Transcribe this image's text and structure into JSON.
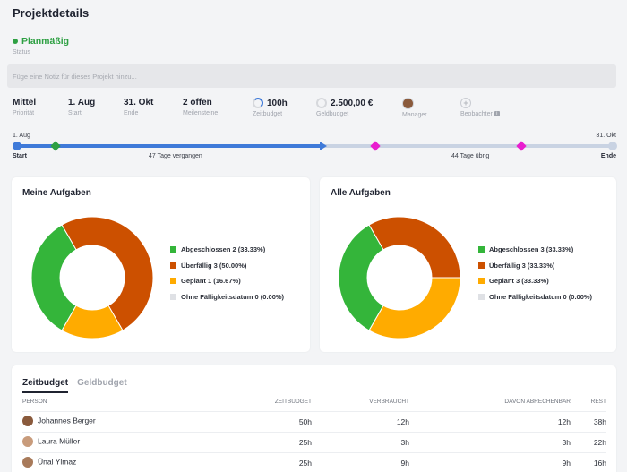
{
  "page": {
    "title": "Projektdetails",
    "status": {
      "label": "Planmäßig",
      "caption": "Status",
      "color": "#2ea043"
    },
    "note_placeholder": "Füge eine Notiz für dieses Projekt hinzu..."
  },
  "meta": [
    {
      "value": "Mittel",
      "caption": "Priorität"
    },
    {
      "value": "1. Aug",
      "caption": "Start"
    },
    {
      "value": "31. Okt",
      "caption": "Ende"
    },
    {
      "value": "2 offen",
      "caption": "Meilensteine"
    },
    {
      "value": "100h",
      "caption": "Zeitbudget"
    },
    {
      "value": "2.500,00 €",
      "caption": "Geldbudget"
    },
    {
      "value": "",
      "caption": "Manager"
    },
    {
      "value": "",
      "caption": "Beobachter"
    }
  ],
  "timeline": {
    "start_date": "1. Aug",
    "end_date": "31. Okt",
    "start_label": "Start",
    "end_label": "Ende",
    "elapsed_label": "47 Tage vergangen",
    "remaining_label": "44 Tage übrig",
    "progress": 0.52,
    "colors": {
      "elapsed": "#3f7ad9",
      "remaining": "#c9d3e3",
      "milestone_done": "#2ea043",
      "milestone_open": "#e91ecf"
    }
  },
  "my_tasks": {
    "title": "Meine Aufgaben",
    "legend": [
      {
        "label": "Abgeschlossen 2 (33.33%)",
        "color": "#34b53a",
        "value": 2
      },
      {
        "label": "Überfällig 3 (50.00%)",
        "color": "#cc5000",
        "value": 3
      },
      {
        "label": "Geplant 1 (16.67%)",
        "color": "#ffab00",
        "value": 1
      },
      {
        "label": "Ohne Fälligkeitsdatum 0 (0.00%)",
        "color": "#dfe1e5",
        "value": 0
      }
    ]
  },
  "all_tasks": {
    "title": "Alle Aufgaben",
    "legend": [
      {
        "label": "Abgeschlossen 3 (33.33%)",
        "color": "#34b53a",
        "value": 3
      },
      {
        "label": "Überfällig 3 (33.33%)",
        "color": "#cc5000",
        "value": 3
      },
      {
        "label": "Geplant 3 (33.33%)",
        "color": "#ffab00",
        "value": 3
      },
      {
        "label": "Ohne Fälligkeitsdatum 0 (0.00%)",
        "color": "#dfe1e5",
        "value": 0
      }
    ]
  },
  "budget": {
    "tab_active": "Zeitbudget",
    "tab_inactive": "Geldbudget",
    "headers": {
      "person": "Person",
      "budget": "Zeitbudget",
      "used": "Verbraucht",
      "billable": "Davon abrechenbar",
      "rest": "Rest"
    },
    "rows": [
      {
        "person": "Johannes Berger",
        "budget": "50h",
        "used": "12h",
        "billable": "12h",
        "rest": "38h"
      },
      {
        "person": "Laura Müller",
        "budget": "25h",
        "used": "3h",
        "billable": "3h",
        "rest": "22h"
      },
      {
        "person": "Ünal Ylmaz",
        "budget": "25h",
        "used": "9h",
        "billable": "9h",
        "rest": "16h"
      }
    ]
  },
  "chart_data": [
    {
      "type": "pie",
      "title": "Meine Aufgaben",
      "categories": [
        "Abgeschlossen",
        "Überfällig",
        "Geplant",
        "Ohne Fälligkeitsdatum"
      ],
      "values": [
        2,
        3,
        1,
        0
      ],
      "colors": [
        "#34b53a",
        "#cc5000",
        "#ffab00",
        "#dfe1e5"
      ],
      "legend": "right"
    },
    {
      "type": "pie",
      "title": "Alle Aufgaben",
      "categories": [
        "Abgeschlossen",
        "Überfällig",
        "Geplant",
        "Ohne Fälligkeitsdatum"
      ],
      "values": [
        3,
        3,
        3,
        0
      ],
      "colors": [
        "#34b53a",
        "#cc5000",
        "#ffab00",
        "#dfe1e5"
      ],
      "legend": "right"
    }
  ]
}
